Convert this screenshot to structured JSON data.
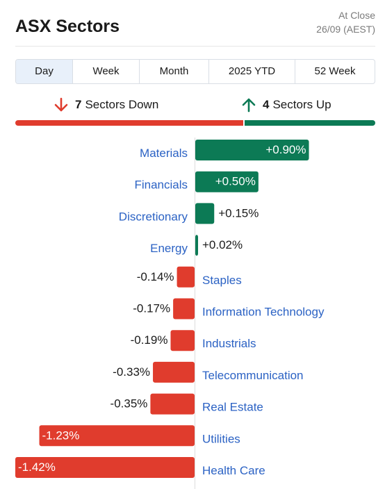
{
  "header": {
    "title": "ASX Sectors",
    "status_line1": "At Close",
    "status_line2": "26/09 (AEST)"
  },
  "tabs": [
    {
      "label": "Day",
      "active": true
    },
    {
      "label": "Week",
      "active": false
    },
    {
      "label": "Month",
      "active": false
    },
    {
      "label": "2025 YTD",
      "active": false
    },
    {
      "label": "52 Week",
      "active": false
    }
  ],
  "summary": {
    "down_count": "7",
    "down_text": "Sectors Down",
    "up_count": "4",
    "up_text": "Sectors Up"
  },
  "colors": {
    "positive": "#0c7a55",
    "negative": "#e03c2d",
    "label": "#2b62c4",
    "value_text": "#1a1a1a"
  },
  "chart_data": {
    "type": "bar",
    "orientation": "horizontal",
    "unit": "%",
    "categories": [
      "Materials",
      "Financials",
      "Discretionary",
      "Energy",
      "Staples",
      "Information Technology",
      "Industrials",
      "Telecommunication",
      "Real Estate",
      "Utilities",
      "Health Care"
    ],
    "values": [
      0.9,
      0.5,
      0.15,
      0.02,
      -0.14,
      -0.17,
      -0.19,
      -0.33,
      -0.35,
      -1.23,
      -1.42
    ],
    "value_labels": [
      "+0.90%",
      "+0.50%",
      "+0.15%",
      "+0.02%",
      "-0.14%",
      "-0.17%",
      "-0.19%",
      "-0.33%",
      "-0.35%",
      "-1.23%",
      "-1.42%"
    ],
    "xlim": [
      -1.42,
      1.42
    ]
  }
}
